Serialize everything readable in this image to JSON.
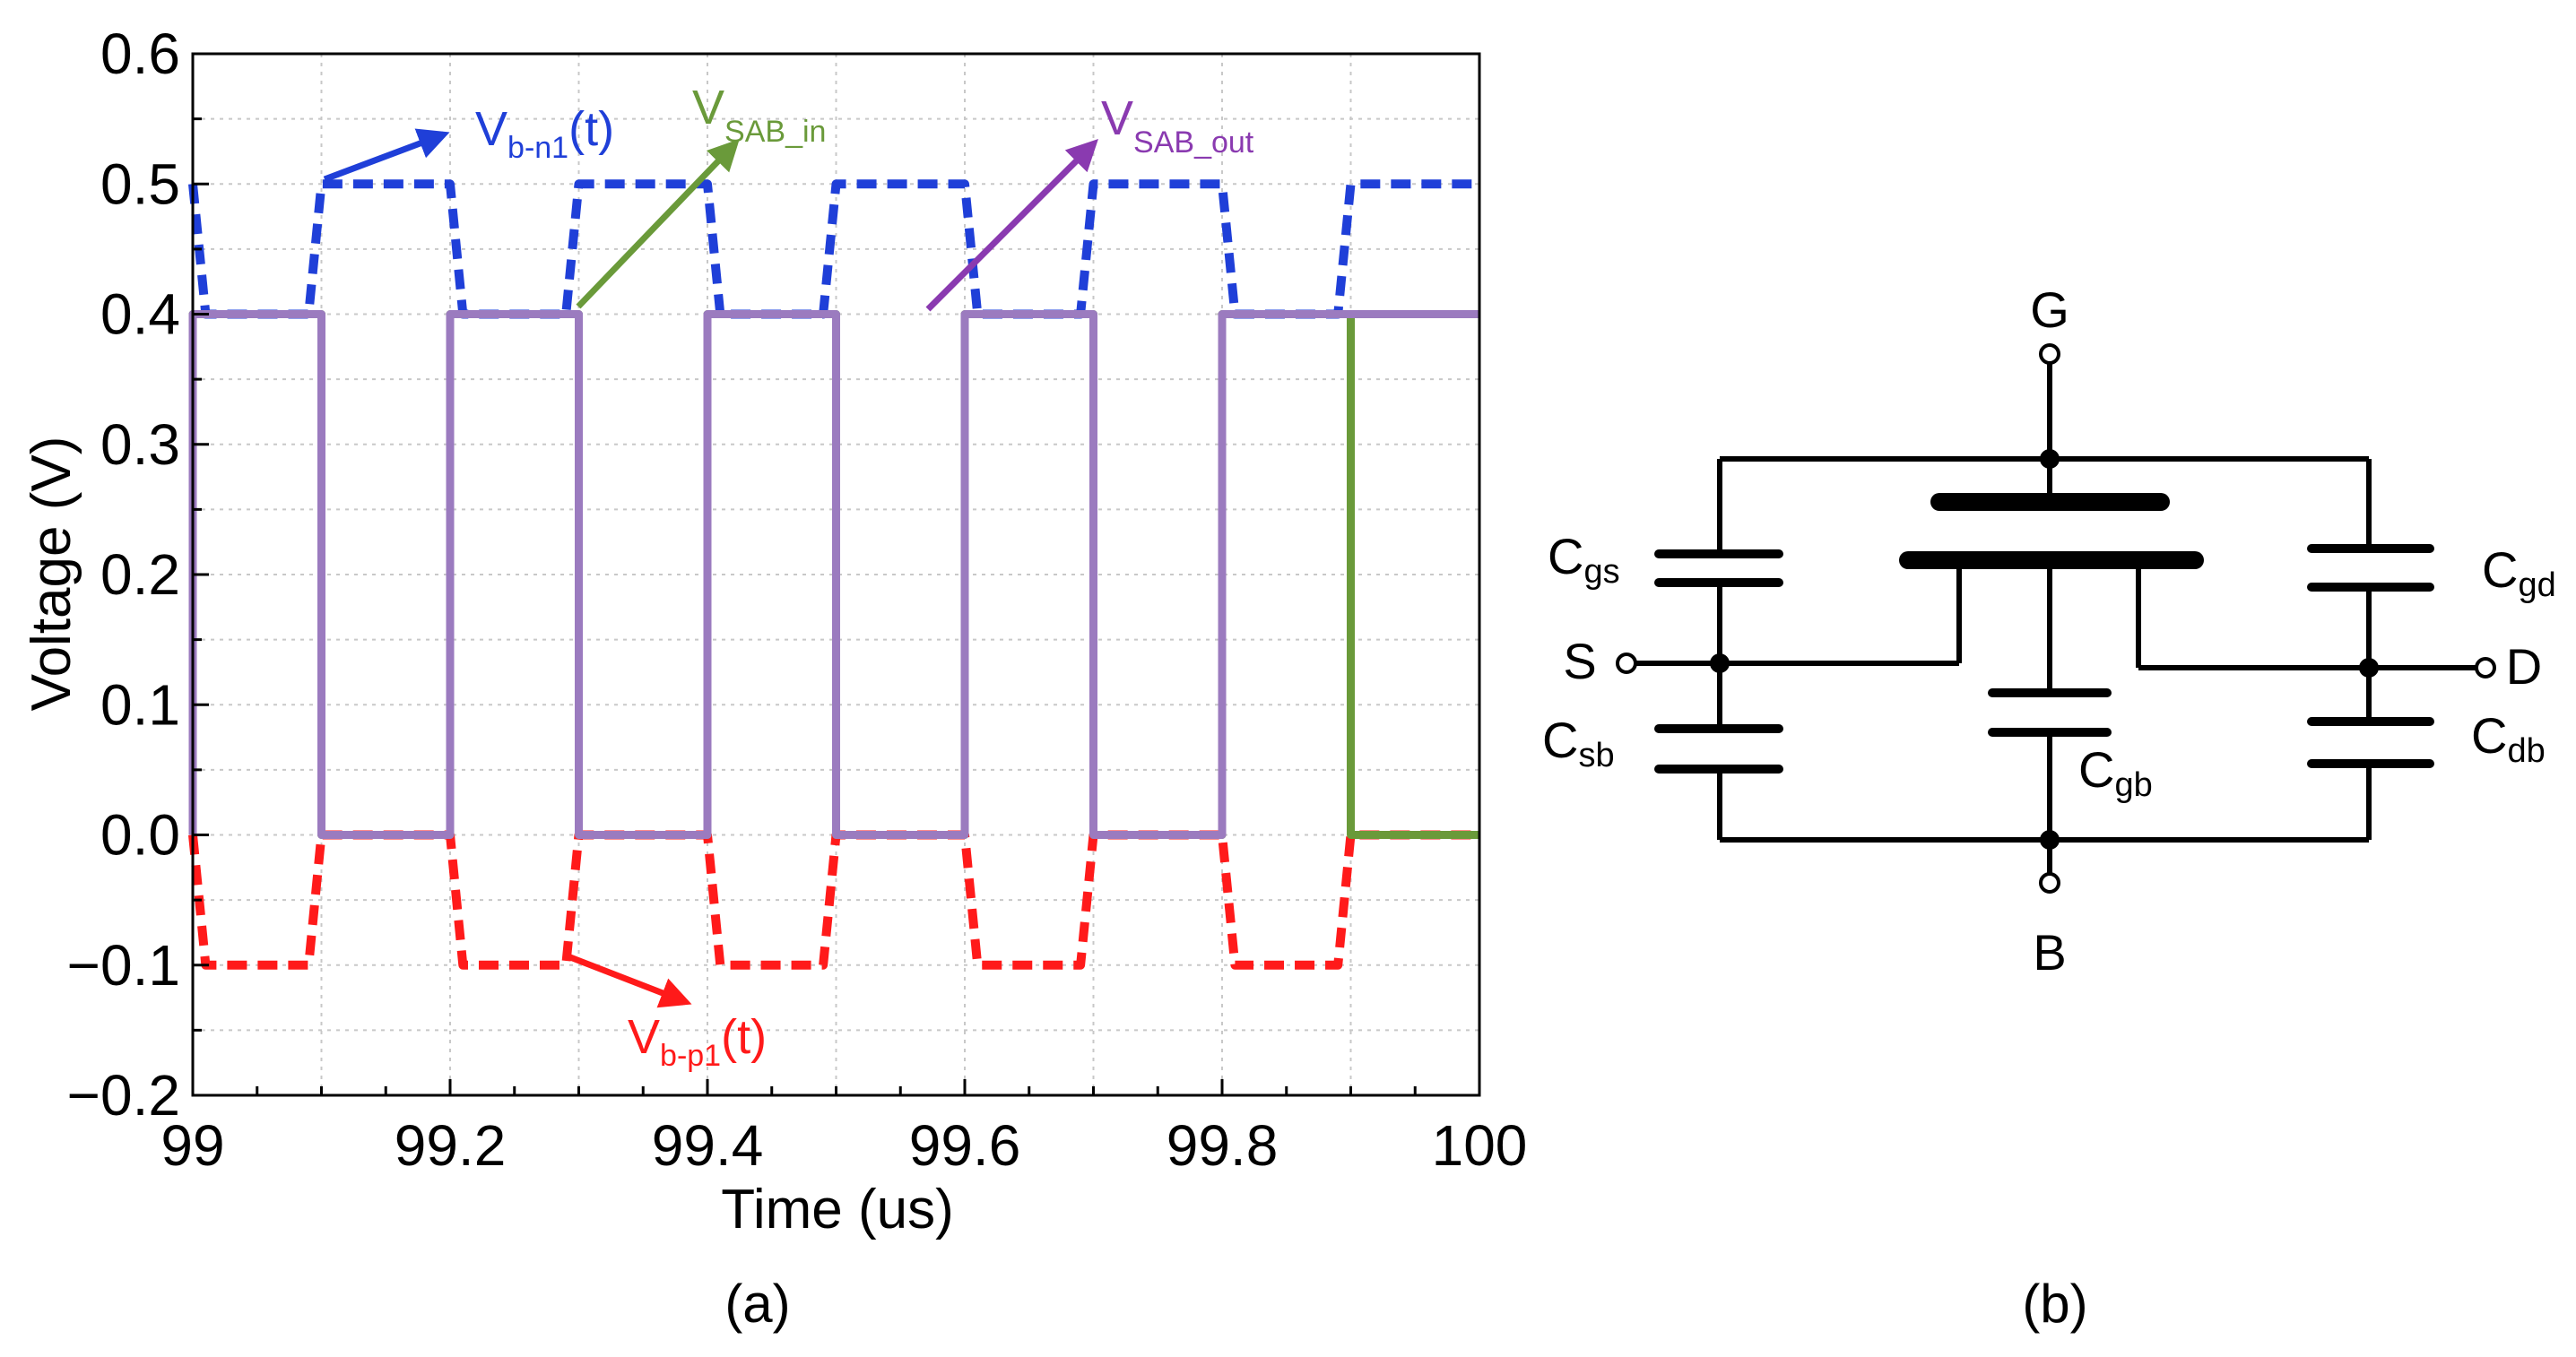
{
  "chart_data": {
    "type": "line",
    "xlabel": "Time (us)",
    "ylabel": "Voltage (V)",
    "xlim": [
      99,
      100
    ],
    "ylim": [
      -0.2,
      0.6
    ],
    "xticks": [
      99,
      99.2,
      99.4,
      99.6,
      99.8,
      100
    ],
    "xtick_labels": [
      "99",
      "99.2",
      "99.4",
      "99.6",
      "99.8",
      "100"
    ],
    "yticks": [
      0.6,
      0.5,
      0.4,
      0.3,
      0.2,
      0.1,
      0.0,
      -0.1,
      -0.2
    ],
    "ytick_labels": [
      "0.6",
      "0.5",
      "0.4",
      "0.3",
      "0.2",
      "0.1",
      "0.0",
      "−0.1",
      "−0.2"
    ],
    "grid": true,
    "caption": "(a)",
    "series": [
      {
        "name": "V_b-n1(t)",
        "color": "#1f3fd8",
        "style": "dashed",
        "x": [
          99.0,
          99.01,
          99.09,
          99.1,
          99.2,
          99.21,
          99.29,
          99.3,
          99.4,
          99.41,
          99.49,
          99.5,
          99.6,
          99.61,
          99.69,
          99.7,
          99.8,
          99.81,
          99.89,
          99.9,
          100.0
        ],
        "y": [
          0.5,
          0.4,
          0.4,
          0.5,
          0.5,
          0.4,
          0.4,
          0.5,
          0.5,
          0.4,
          0.4,
          0.5,
          0.5,
          0.4,
          0.4,
          0.5,
          0.5,
          0.4,
          0.4,
          0.5,
          0.5
        ]
      },
      {
        "name": "V_b-p1(t)",
        "color": "#ff1a1a",
        "style": "dashed",
        "x": [
          99.0,
          99.01,
          99.09,
          99.1,
          99.2,
          99.21,
          99.29,
          99.3,
          99.4,
          99.41,
          99.49,
          99.5,
          99.6,
          99.61,
          99.69,
          99.7,
          99.8,
          99.81,
          99.89,
          99.9,
          100.0
        ],
        "y": [
          0.0,
          -0.1,
          -0.1,
          0.0,
          0.0,
          -0.1,
          -0.1,
          0.0,
          0.0,
          -0.1,
          -0.1,
          0.0,
          0.0,
          -0.1,
          -0.1,
          0.0,
          0.0,
          -0.1,
          -0.1,
          0.0,
          0.0
        ]
      },
      {
        "name": "V_SAB_in",
        "color": "#6a9a3a",
        "style": "solid",
        "x": [
          99.0,
          99.0,
          99.1,
          99.1,
          99.2,
          99.2,
          99.3,
          99.3,
          99.4,
          99.4,
          99.5,
          99.5,
          99.6,
          99.6,
          99.7,
          99.7,
          99.8,
          99.8,
          99.9,
          99.9,
          100.0
        ],
        "y": [
          0.0,
          0.4,
          0.4,
          0.0,
          0.0,
          0.4,
          0.4,
          0.0,
          0.0,
          0.4,
          0.4,
          0.0,
          0.0,
          0.4,
          0.4,
          0.0,
          0.0,
          0.4,
          0.4,
          0.0,
          0.0
        ]
      },
      {
        "name": "V_SAB_out",
        "color": "#9b7bbf",
        "style": "solid",
        "x": [
          99.0,
          99.0,
          99.1,
          99.1,
          99.2,
          99.2,
          99.3,
          99.3,
          99.4,
          99.4,
          99.5,
          99.5,
          99.6,
          99.6,
          99.7,
          99.7,
          99.8,
          99.8,
          99.9,
          99.9,
          100.0
        ],
        "y": [
          0.0,
          0.4,
          0.4,
          0.0,
          0.0,
          0.4,
          0.4,
          0.0,
          0.0,
          0.4,
          0.4,
          0.0,
          0.0,
          0.4,
          0.4,
          0.0,
          0.0,
          0.4,
          0.4,
          0.4,
          0.4
        ]
      }
    ],
    "annotations": [
      {
        "main": "V",
        "sub": "b-n1",
        "tail": "(t)",
        "color": "#1f3fd8"
      },
      {
        "main": "V",
        "sub": "SAB_in",
        "tail": "",
        "color": "#6a9a3a"
      },
      {
        "main": "V",
        "sub": "SAB_out",
        "tail": "",
        "color": "#8a3ab0"
      },
      {
        "main": "V",
        "sub": "b-p1",
        "tail": "(t)",
        "color": "#ff1a1a"
      }
    ]
  },
  "circuit": {
    "caption": "(b)",
    "nodes": {
      "gate": "G",
      "source": "S",
      "drain": "D",
      "body": "B"
    },
    "capacitors": {
      "gs": {
        "main": "C",
        "sub": "gs"
      },
      "sb": {
        "main": "C",
        "sub": "sb"
      },
      "gd": {
        "main": "C",
        "sub": "gd"
      },
      "db": {
        "main": "C",
        "sub": "db"
      },
      "gb": {
        "main": "C",
        "sub": "gb"
      }
    }
  }
}
